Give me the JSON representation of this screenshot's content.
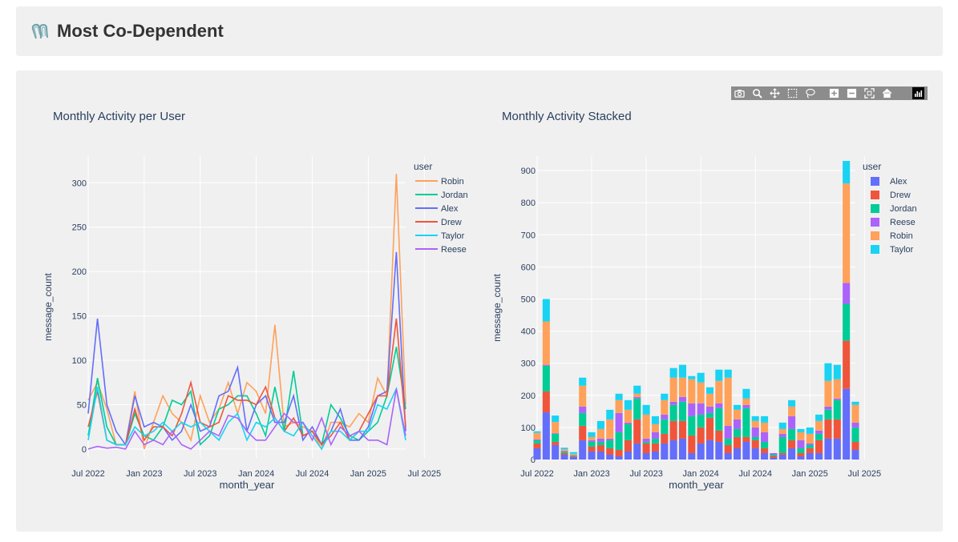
{
  "header": {
    "title": "Most Co-Dependent",
    "icon": "paperclip-icon"
  },
  "modebar": {
    "buttons": [
      "camera-icon",
      "zoom-icon",
      "pan-icon",
      "box-select-icon",
      "lasso-select-icon",
      "zoom-in-icon",
      "zoom-out-icon",
      "autoscale-icon",
      "reset-axes-icon"
    ],
    "logo": "plotly-logo-icon"
  },
  "colors": {
    "Alex": "#636efa",
    "Drew": "#ef553b",
    "Jordan": "#00cc96",
    "Reese": "#ab63fa",
    "Robin": "#ffa15a",
    "Taylor": "#19d3f3",
    "grid": "#ffffff",
    "card": "#f0f0f0"
  },
  "chart_data": [
    {
      "type": "line",
      "title": "Monthly Activity per User",
      "xlabel": "month_year",
      "ylabel": "message_count",
      "legend_title": "user",
      "legend_placement": "right",
      "x_start": "2022-07",
      "x_ticks": [
        "Jul 2022",
        "Jan 2023",
        "Jul 2023",
        "Jan 2024",
        "Jul 2024",
        "Jan 2025",
        "Jul 2025"
      ],
      "y_ticks": [
        0,
        50,
        100,
        150,
        200,
        250,
        300
      ],
      "ylim": [
        -10,
        330
      ],
      "grid": true,
      "series": [
        {
          "name": "Robin",
          "values": [
            55,
            75,
            45,
            5,
            5,
            65,
            0,
            30,
            60,
            40,
            30,
            10,
            60,
            30,
            45,
            75,
            40,
            75,
            65,
            40,
            140,
            25,
            30,
            25,
            20,
            0,
            30,
            30,
            25,
            40,
            30,
            80,
            60,
            310,
            50
          ]
        },
        {
          "name": "Jordan",
          "values": [
            15,
            80,
            25,
            5,
            5,
            40,
            15,
            10,
            25,
            55,
            50,
            65,
            5,
            15,
            45,
            50,
            60,
            60,
            40,
            15,
            70,
            20,
            88,
            15,
            20,
            5,
            50,
            35,
            15,
            10,
            20,
            30,
            60,
            115,
            45
          ]
        },
        {
          "name": "Alex",
          "values": [
            40,
            147,
            50,
            20,
            5,
            60,
            25,
            30,
            25,
            10,
            20,
            50,
            20,
            25,
            60,
            65,
            92,
            20,
            50,
            60,
            30,
            30,
            60,
            10,
            25,
            5,
            20,
            45,
            10,
            10,
            25,
            60,
            65,
            222,
            20
          ]
        },
        {
          "name": "Drew",
          "values": [
            25,
            65,
            10,
            5,
            5,
            45,
            10,
            25,
            25,
            15,
            40,
            75,
            30,
            25,
            30,
            60,
            55,
            55,
            50,
            70,
            35,
            20,
            35,
            15,
            20,
            5,
            15,
            30,
            10,
            20,
            40,
            60,
            60,
            147,
            25
          ]
        },
        {
          "name": "Taylor",
          "values": [
            10,
            70,
            10,
            5,
            5,
            25,
            15,
            20,
            30,
            20,
            30,
            25,
            30,
            20,
            10,
            30,
            40,
            10,
            30,
            25,
            35,
            20,
            15,
            30,
            15,
            0,
            20,
            20,
            10,
            20,
            20,
            50,
            45,
            68,
            10
          ]
        },
        {
          "name": "Reese",
          "values": [
            0,
            3,
            1,
            2,
            0,
            20,
            5,
            10,
            5,
            20,
            5,
            0,
            10,
            20,
            15,
            38,
            35,
            20,
            10,
            10,
            25,
            40,
            30,
            30,
            10,
            35,
            5,
            25,
            15,
            20,
            10,
            10,
            5,
            68,
            15
          ]
        }
      ]
    },
    {
      "type": "bar",
      "title": "Monthly Activity Stacked",
      "xlabel": "month_year",
      "ylabel": "message_count",
      "legend_title": "user",
      "legend_placement": "right",
      "barmode": "stack",
      "x_start": "2022-07",
      "x_ticks": [
        "Jul 2022",
        "Jan 2023",
        "Jul 2023",
        "Jan 2024",
        "Jul 2024",
        "Jan 2025",
        "Jul 2025"
      ],
      "y_ticks": [
        0,
        100,
        200,
        300,
        400,
        500,
        600,
        700,
        800,
        900
      ],
      "ylim": [
        0,
        945
      ],
      "grid": true,
      "series": [
        {
          "name": "Alex",
          "values": [
            35,
            147,
            45,
            15,
            8,
            60,
            25,
            25,
            15,
            10,
            25,
            50,
            20,
            25,
            50,
            60,
            65,
            20,
            50,
            60,
            55,
            20,
            35,
            55,
            35,
            20,
            5,
            15,
            35,
            10,
            20,
            20,
            65,
            65,
            220,
            30
          ]
        },
        {
          "name": "Drew",
          "values": [
            15,
            65,
            10,
            5,
            2,
            45,
            15,
            20,
            20,
            20,
            35,
            75,
            30,
            25,
            30,
            60,
            55,
            55,
            50,
            70,
            35,
            25,
            35,
            15,
            25,
            15,
            5,
            5,
            25,
            10,
            15,
            40,
            60,
            60,
            150,
            25
          ]
        },
        {
          "name": "Jordan",
          "values": [
            10,
            80,
            25,
            5,
            3,
            40,
            15,
            10,
            25,
            55,
            50,
            65,
            5,
            15,
            45,
            50,
            60,
            60,
            40,
            15,
            70,
            20,
            25,
            90,
            10,
            20,
            5,
            50,
            35,
            15,
            10,
            20,
            30,
            60,
            115,
            45
          ]
        },
        {
          "name": "Reese",
          "values": [
            3,
            3,
            2,
            2,
            1,
            20,
            5,
            10,
            5,
            60,
            5,
            5,
            10,
            20,
            15,
            10,
            15,
            40,
            35,
            20,
            15,
            40,
            30,
            10,
            30,
            30,
            5,
            10,
            40,
            25,
            5,
            10,
            10,
            5,
            65,
            15
          ]
        },
        {
          "name": "Robin",
          "values": [
            20,
            135,
            35,
            5,
            4,
            65,
            10,
            30,
            60,
            40,
            40,
            10,
            75,
            25,
            45,
            75,
            60,
            75,
            65,
            40,
            70,
            150,
            30,
            20,
            20,
            30,
            0,
            15,
            30,
            25,
            30,
            30,
            80,
            60,
            310,
            55
          ]
        },
        {
          "name": "Taylor",
          "values": [
            5,
            70,
            20,
            5,
            5,
            25,
            15,
            25,
            30,
            20,
            30,
            25,
            30,
            25,
            20,
            30,
            40,
            10,
            30,
            20,
            35,
            25,
            15,
            30,
            15,
            20,
            0,
            20,
            20,
            10,
            20,
            20,
            55,
            45,
            70,
            10
          ]
        }
      ]
    }
  ]
}
